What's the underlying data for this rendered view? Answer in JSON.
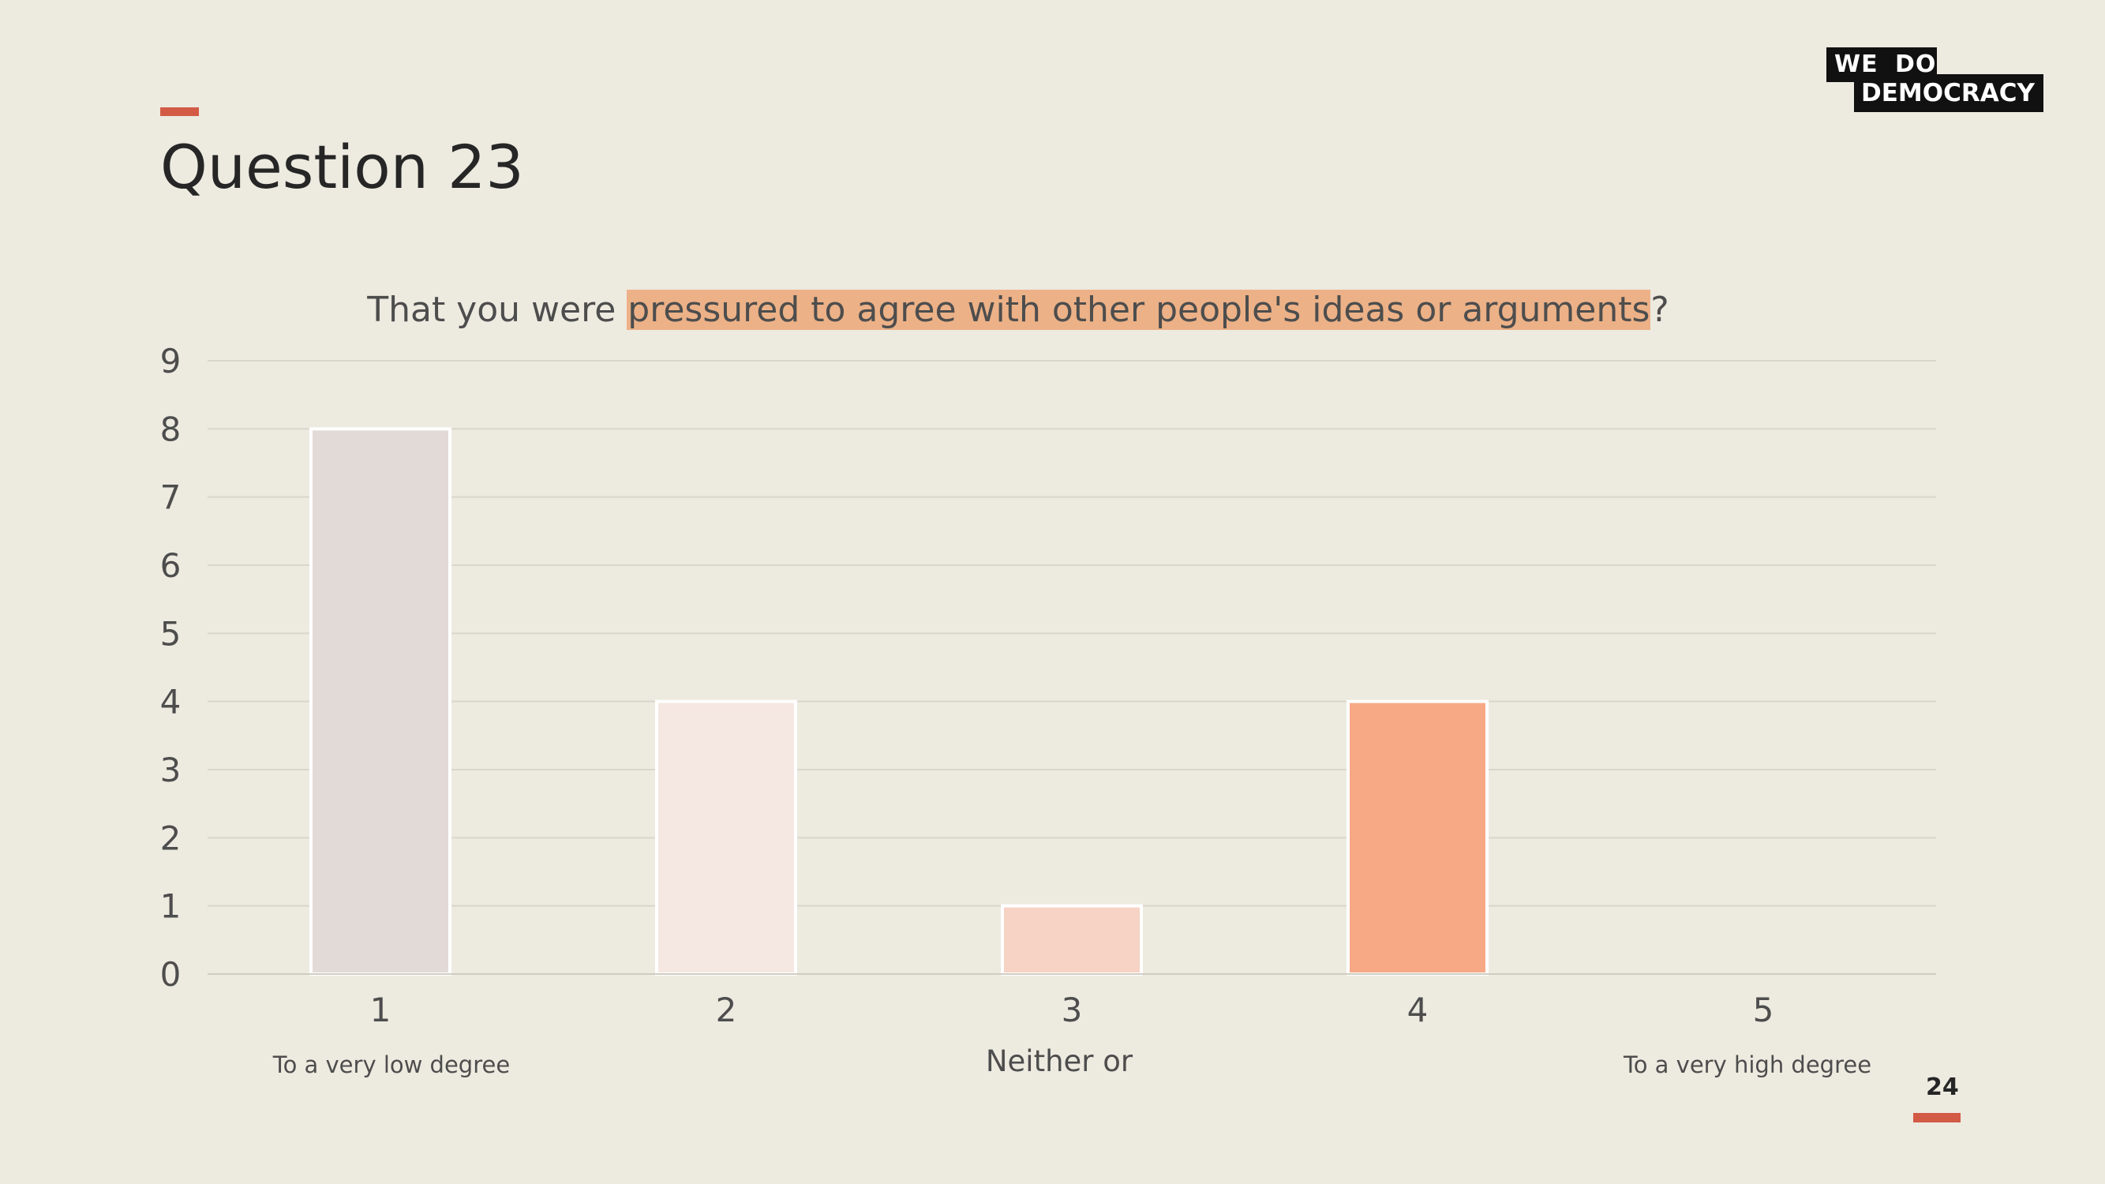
{
  "slide": {
    "title": "Question 23",
    "page_number": "24",
    "accent_color": "#d35a45"
  },
  "logo": {
    "word1": "WE",
    "word2": "DO",
    "word3": "DEMOCRACY"
  },
  "question": {
    "prefix": "That you were ",
    "highlight": "pressured to agree with other people's ideas or arguments",
    "suffix": "?",
    "highlight_color": "#ecb187"
  },
  "chart_data": {
    "type": "bar",
    "categories": [
      "1",
      "2",
      "3",
      "4",
      "5"
    ],
    "values": [
      8,
      4,
      1,
      4,
      0
    ],
    "bar_colors": [
      "#e2dad6",
      "#f5e7e1",
      "#f6d3c4",
      "#f7a985",
      "#f7a985"
    ],
    "category_sublabels": [
      {
        "index": 0,
        "text": "To a very low degree"
      },
      {
        "index": 2,
        "text": "Neither or"
      },
      {
        "index": 4,
        "text": "To a very high degree"
      }
    ],
    "yticks": [
      0,
      1,
      2,
      3,
      4,
      5,
      6,
      7,
      8,
      9
    ],
    "ylim": [
      0,
      9
    ],
    "grid": true,
    "legend": "none"
  }
}
